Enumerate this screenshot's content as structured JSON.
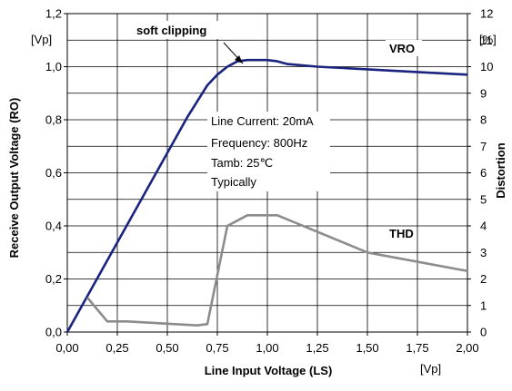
{
  "chart_data": {
    "type": "line",
    "xlabel": "Line Input Voltage (LS)",
    "x_unit": "[Vp]",
    "ylabel_left": "Receive Output Voltage (RO)",
    "y_unit_left": "[Vp]",
    "ylabel_right": "Distortion",
    "y_unit_right": "[%]",
    "xlim": [
      0,
      2.0
    ],
    "ylim_left": [
      0,
      1.2
    ],
    "ylim_right": [
      0,
      12
    ],
    "grid": true,
    "x_ticks": [
      "0,00",
      "0,25",
      "0,50",
      "0,75",
      "1,00",
      "1,25",
      "1,50",
      "1,75",
      "2,00"
    ],
    "y_ticks_left": [
      "0,0",
      "0,2",
      "0,4",
      "0,6",
      "0,8",
      "1,0",
      "1,2"
    ],
    "y_ticks_right": [
      "0",
      "1",
      "2",
      "3",
      "4",
      "5",
      "6",
      "7",
      "8",
      "9",
      "10",
      "11",
      "12"
    ],
    "series": [
      {
        "name": "VRO",
        "axis": "left",
        "color": "#1a237e",
        "x": [
          0.0,
          0.2,
          0.4,
          0.6,
          0.7,
          0.75,
          0.8,
          0.85,
          0.9,
          1.0,
          1.05,
          1.1,
          1.25,
          1.5,
          1.75,
          2.0
        ],
        "y": [
          0.0,
          0.27,
          0.54,
          0.81,
          0.93,
          0.97,
          1.0,
          1.02,
          1.025,
          1.025,
          1.02,
          1.01,
          1.0,
          0.99,
          0.98,
          0.97
        ]
      },
      {
        "name": "THD",
        "axis": "right",
        "color": "#8c8c8c",
        "x": [
          0.1,
          0.2,
          0.3,
          0.65,
          0.7,
          0.8,
          0.9,
          1.05,
          1.5,
          2.0
        ],
        "y": [
          1.3,
          0.4,
          0.4,
          0.25,
          0.3,
          4.0,
          4.4,
          4.4,
          3.0,
          2.3
        ]
      }
    ],
    "annotations": {
      "soft_clipping": "soft clipping",
      "info_lines": [
        "Line Current: 20mA",
        "Frequency: 800Hz",
        "Tamb: 25℃",
        "Typically"
      ]
    }
  }
}
